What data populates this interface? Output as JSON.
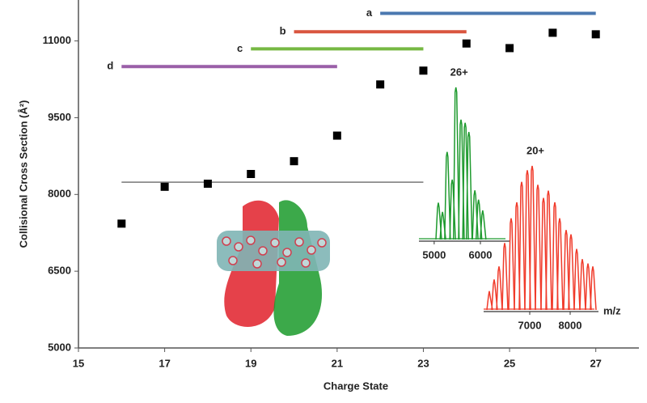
{
  "chart_data": [
    {
      "type": "scatter",
      "xlabel": "Charge State",
      "ylabel": "Collisional Cross Section (Å²)",
      "x": [
        16,
        17,
        18,
        19,
        20,
        21,
        22,
        23,
        24,
        25,
        26,
        27
      ],
      "values": [
        7430,
        8150,
        8210,
        8400,
        8650,
        9150,
        10150,
        10420,
        10950,
        10860,
        11160,
        11130
      ],
      "color": "#000000",
      "xlim": [
        15,
        28
      ],
      "xticks": [
        15,
        17,
        19,
        21,
        23,
        25,
        27
      ],
      "ylim": [
        5000,
        11800
      ],
      "yticks": [
        5000,
        6500,
        8000,
        9500,
        11000
      ],
      "reference_line": {
        "y": 8240,
        "x": [
          16,
          23
        ],
        "color": "#777777"
      },
      "ranges": [
        {
          "label": "a",
          "color": "#4a78b0",
          "x": [
            22,
            27
          ],
          "y": 11540
        },
        {
          "label": "b",
          "color": "#d9553f",
          "x": [
            20,
            24
          ],
          "y": 11180
        },
        {
          "label": "c",
          "color": "#76b843",
          "x": [
            19,
            23
          ],
          "y": 10845
        },
        {
          "label": "d",
          "color": "#9a5fa8",
          "x": [
            16,
            21
          ],
          "y": 10500
        }
      ]
    },
    {
      "type": "spectrum",
      "annotation": "26+",
      "color": "#1e9a2e",
      "x": [
        5090,
        5180,
        5280,
        5390,
        5470,
        5580,
        5670,
        5750,
        5880,
        5960,
        6050
      ],
      "values": [
        25,
        19,
        58,
        40,
        100,
        79,
        77,
        71,
        33,
        27,
        20
      ],
      "xlim": [
        4670,
        6630
      ],
      "xticks": [
        5000,
        6000
      ]
    },
    {
      "type": "spectrum",
      "annotation": "20+",
      "xlabel": "m/z",
      "color": "#f03a2a",
      "x": [
        6000,
        6120,
        6240,
        6380,
        6540,
        6680,
        6800,
        6940,
        7060,
        7200,
        7340,
        7460,
        7620,
        7740,
        7900,
        8020,
        8160,
        8300,
        8440,
        8560
      ],
      "values": [
        14,
        22,
        31,
        47,
        64,
        75,
        89,
        97,
        100,
        87,
        78,
        83,
        75,
        64,
        56,
        53,
        43,
        36,
        33,
        31
      ],
      "xlim": [
        5860,
        8700
      ],
      "xticks": [
        7000,
        8000
      ]
    }
  ]
}
